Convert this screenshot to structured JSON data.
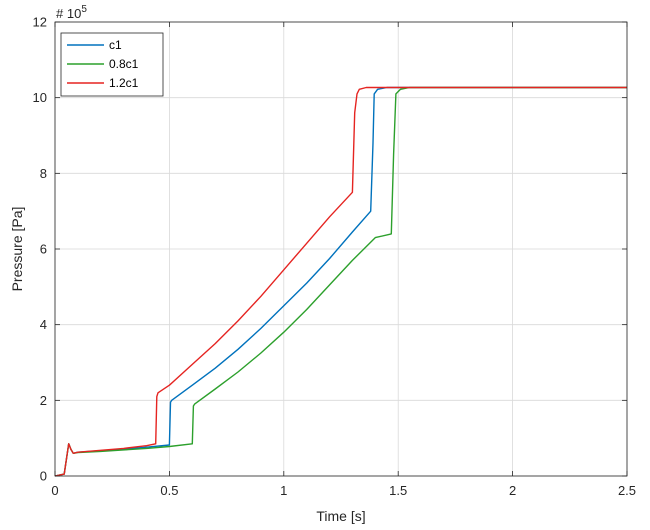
{
  "chart_data": {
    "type": "line",
    "xlabel": "Time [s]",
    "ylabel": "Pressure [Pa]",
    "exponent_label": "# 10",
    "exponent_power": "5",
    "xlim": [
      0,
      2.5
    ],
    "ylim": [
      0,
      12
    ],
    "xticks": [
      0,
      0.5,
      1,
      1.5,
      2,
      2.5
    ],
    "xtick_labels": [
      "0",
      "0.5",
      "1",
      "1.5",
      "2",
      "2.5"
    ],
    "yticks": [
      0,
      2,
      4,
      6,
      8,
      10,
      12
    ],
    "ytick_labels": [
      "0",
      "2",
      "4",
      "6",
      "8",
      "10",
      "12"
    ],
    "grid": true,
    "legend_position": "top-left",
    "series": [
      {
        "name": "c1",
        "color": "#0072BD",
        "x": [
          0,
          0.04,
          0.06,
          0.07,
          0.08,
          0.1,
          0.2,
          0.3,
          0.4,
          0.5,
          0.505,
          0.51,
          0.6,
          0.7,
          0.8,
          0.9,
          1.0,
          1.1,
          1.2,
          1.3,
          1.38,
          1.39,
          1.395,
          1.41,
          1.45,
          1.5,
          1.6,
          2.0,
          2.5
        ],
        "y": [
          0,
          0.05,
          0.85,
          0.7,
          0.6,
          0.63,
          0.67,
          0.71,
          0.76,
          0.82,
          1.95,
          2.0,
          2.4,
          2.85,
          3.35,
          3.9,
          4.5,
          5.1,
          5.75,
          6.45,
          7.0,
          8.8,
          10.1,
          10.22,
          10.27,
          10.27,
          10.27,
          10.27,
          10.27
        ]
      },
      {
        "name": "0.8c1",
        "color": "#2CA02C",
        "x": [
          0,
          0.04,
          0.06,
          0.07,
          0.08,
          0.1,
          0.2,
          0.3,
          0.4,
          0.5,
          0.6,
          0.605,
          0.61,
          0.7,
          0.8,
          0.9,
          1.0,
          1.1,
          1.2,
          1.3,
          1.4,
          1.47,
          1.48,
          1.49,
          1.51,
          1.55,
          1.6,
          2.0,
          2.5
        ],
        "y": [
          0,
          0.05,
          0.85,
          0.7,
          0.6,
          0.62,
          0.65,
          0.69,
          0.73,
          0.78,
          0.85,
          1.85,
          1.9,
          2.3,
          2.75,
          3.25,
          3.8,
          4.4,
          5.05,
          5.7,
          6.3,
          6.4,
          8.5,
          10.1,
          10.22,
          10.27,
          10.27,
          10.27,
          10.27
        ]
      },
      {
        "name": "1.2c1",
        "color": "#E52421",
        "x": [
          0,
          0.04,
          0.06,
          0.07,
          0.08,
          0.1,
          0.2,
          0.3,
          0.4,
          0.44,
          0.445,
          0.45,
          0.5,
          0.6,
          0.7,
          0.8,
          0.9,
          1.0,
          1.1,
          1.2,
          1.3,
          1.31,
          1.32,
          1.33,
          1.36,
          1.4,
          1.5,
          2.0,
          2.5
        ],
        "y": [
          0,
          0.05,
          0.85,
          0.7,
          0.6,
          0.63,
          0.68,
          0.73,
          0.8,
          0.85,
          2.1,
          2.2,
          2.4,
          2.95,
          3.5,
          4.1,
          4.75,
          5.45,
          6.15,
          6.85,
          7.5,
          9.6,
          10.1,
          10.22,
          10.27,
          10.27,
          10.27,
          10.27,
          10.27
        ]
      }
    ]
  }
}
